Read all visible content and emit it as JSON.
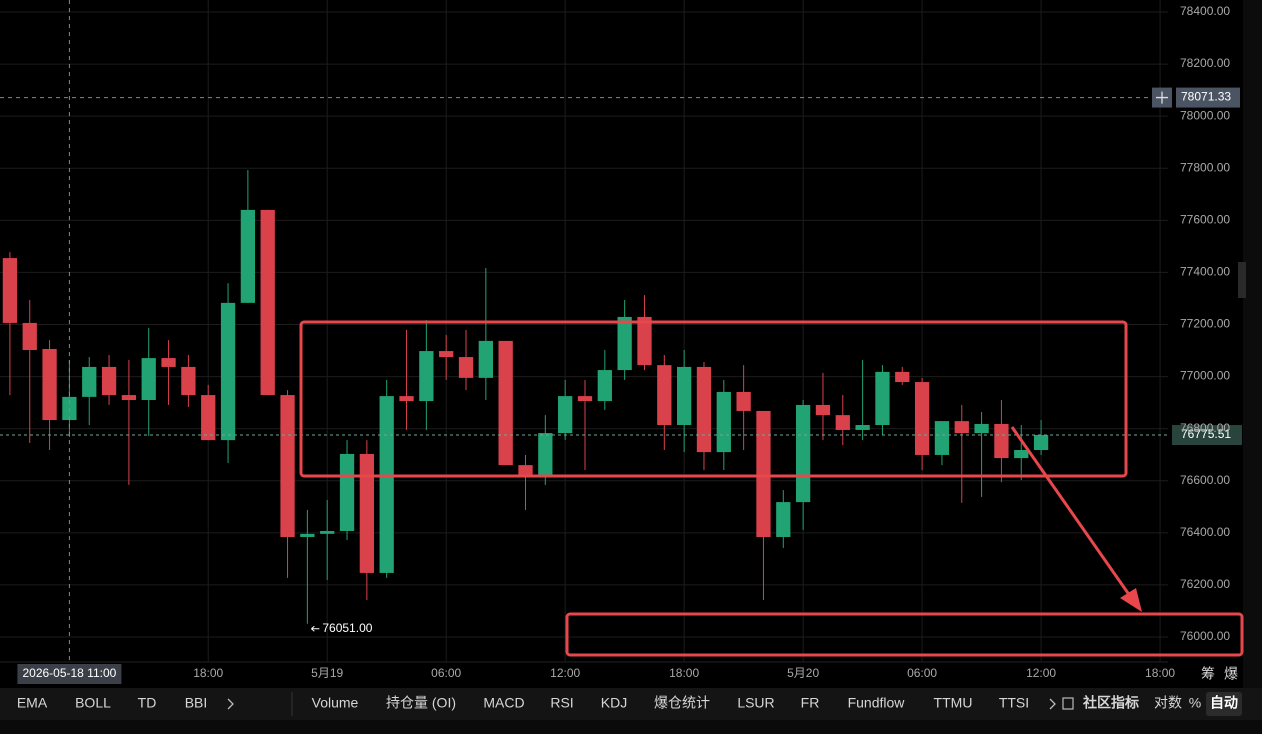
{
  "chart_data": {
    "type": "candlestick",
    "up_color": "#21a374",
    "down_color": "#d9424b",
    "open": [
      77455,
      77206,
      77106,
      76833,
      76922,
      77037,
      76929,
      76910,
      77071,
      77037,
      76929,
      76756,
      77283,
      77640,
      76929,
      76384,
      76396,
      76407,
      76703,
      76246,
      76925,
      76906,
      77098,
      77075,
      76995,
      77137,
      76660,
      76618,
      76783,
      76925,
      76906,
      77025,
      77229,
      77044,
      76814,
      77037,
      76710,
      76941,
      76868,
      76384,
      76518,
      76891,
      76852,
      76795,
      76814,
      77018,
      76979,
      76699,
      76829,
      76783,
      76818,
      76687,
      76718
    ],
    "high": [
      77478,
      77294,
      77140,
      77064,
      77075,
      77083,
      77064,
      77187,
      77140,
      77083,
      76968,
      77359,
      77793,
      77640,
      76948,
      76488,
      76526,
      76756,
      76756,
      76987,
      77179,
      77217,
      77160,
      77179,
      77417,
      77137,
      76699,
      76852,
      76987,
      76987,
      77102,
      77294,
      77313,
      77083,
      77102,
      77056,
      76987,
      77044,
      76868,
      76564,
      76910,
      77014,
      76929,
      77064,
      77044,
      77037,
      76995,
      76829,
      76891,
      76864,
      76910,
      76814,
      76833
    ],
    "low": [
      76929,
      76745,
      76718,
      76768,
      76814,
      76891,
      76584,
      76772,
      76891,
      76883,
      76756,
      76668,
      77283,
      76929,
      76227,
      76051,
      76219,
      76372,
      76142,
      76227,
      76795,
      76795,
      76987,
      76948,
      76910,
      76660,
      76488,
      76584,
      76756,
      76641,
      76872,
      76987,
      77025,
      76718,
      76710,
      76641,
      76641,
      76718,
      76142,
      76342,
      76411,
      76756,
      76737,
      76756,
      76776,
      76968,
      76641,
      76660,
      76515,
      76538,
      76595,
      76603,
      76699
    ],
    "close": [
      77206,
      77102,
      76833,
      76922,
      77037,
      76929,
      76910,
      77071,
      77037,
      76929,
      76756,
      77283,
      77640,
      76929,
      76384,
      76396,
      76407,
      76703,
      76246,
      76925,
      76906,
      77098,
      77075,
      76995,
      77137,
      76660,
      76618,
      76783,
      76925,
      76906,
      77025,
      77229,
      77044,
      76814,
      77037,
      76710,
      76941,
      76868,
      76384,
      76518,
      76891,
      76852,
      76795,
      76814,
      77018,
      76979,
      76699,
      76829,
      76783,
      76818,
      76687,
      76718,
      76775.51
    ],
    "ylim": [
      75904,
      78446
    ],
    "yticks": [
      {
        "value": 76000,
        "label": "76000.00"
      },
      {
        "value": 76200,
        "label": "76200.00"
      },
      {
        "value": 76400,
        "label": "76400.00"
      },
      {
        "value": 76600,
        "label": "76600.00"
      },
      {
        "value": 76800,
        "label": "76800.00"
      },
      {
        "value": 77000,
        "label": "77000.00"
      },
      {
        "value": 77200,
        "label": "77200.00"
      },
      {
        "value": 77400,
        "label": "77400.00"
      },
      {
        "value": 77600,
        "label": "77600.00"
      },
      {
        "value": 77800,
        "label": "77800.00"
      },
      {
        "value": 78000,
        "label": "78000.00"
      },
      {
        "value": 78200,
        "label": "78200.00"
      },
      {
        "value": 78400,
        "label": "78400.00"
      }
    ],
    "xlim": [
      -0.5,
      58.4
    ],
    "xticks": [
      {
        "value": 10,
        "label": "18:00"
      },
      {
        "value": 16,
        "label": "5月19"
      },
      {
        "value": 22,
        "label": "06:00"
      },
      {
        "value": 28,
        "label": "12:00"
      },
      {
        "value": 34,
        "label": "18:00"
      },
      {
        "value": 40,
        "label": "5月20"
      },
      {
        "value": 46,
        "label": "06:00"
      },
      {
        "value": 52,
        "label": "12:00"
      },
      {
        "value": 58,
        "label": "18:00"
      }
    ],
    "grid": true,
    "crosshair": {
      "x": 3,
      "x_label": "2026-05-18 11:00",
      "y": 78071.33
    },
    "last_price": 76775.51,
    "low_marker": {
      "x": 15,
      "price": {
        "value": 76051,
        "label": "76051.00"
      }
    }
  },
  "toolbar": {
    "main_indicators": [
      "EMA",
      "BOLL",
      "TD",
      "BBI"
    ],
    "sub_indicators": [
      "Volume",
      "持仓量 (OI)",
      "MACD",
      "RSI",
      "KDJ",
      "爆仓统计",
      "LSUR",
      "FR",
      "Fundflow",
      "TTMU",
      "TTSI"
    ],
    "community": "社区指标",
    "options": [
      "对数",
      "%",
      "自动"
    ],
    "side_tabs": [
      "筹",
      "爆"
    ]
  }
}
